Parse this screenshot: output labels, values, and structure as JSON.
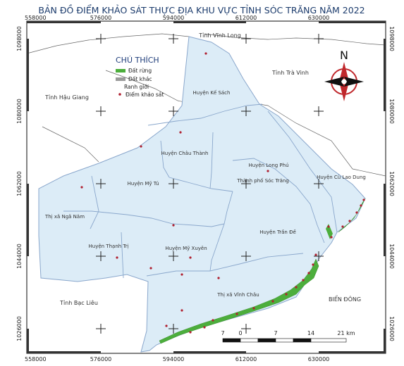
{
  "map": {
    "title": "BẢN ĐỒ ĐIỂM KHẢO SÁT THỰC ĐỊA KHU VỰC TỈNH SÓC TRĂNG NĂM 2022",
    "x_ticks": [
      "558000",
      "576000",
      "594000",
      "612000",
      "630000"
    ],
    "y_ticks": [
      "1098000",
      "1080000",
      "1062000",
      "1044000",
      "1026000"
    ],
    "north_label": "N",
    "legend": {
      "title": "CHÚ THÍCH",
      "items": [
        {
          "label": "Đất rừng",
          "color": "#4cae3c"
        },
        {
          "label": "Đất khác",
          "color": "#9a9a9a"
        },
        {
          "label": "Ranh giới",
          "color": "#7090c0"
        },
        {
          "label": "Điểm khảo sát",
          "color": "#b02030"
        }
      ]
    },
    "scale_bar": {
      "labels": [
        "7",
        "0",
        "7",
        "14",
        "21 km"
      ]
    },
    "neighbors": [
      "Tỉnh Vĩnh Long",
      "Tỉnh Trà Vinh",
      "Tỉnh Hậu Giang",
      "Tỉnh Bạc Liêu",
      "BIỂN ĐÔNG"
    ],
    "districts": [
      "Huyện Kế Sách",
      "Huyện Châu Thành",
      "Huyện Mỹ Tú",
      "Huyện Long Phú",
      "Thành phố Sóc Trăng",
      "Huyện Cù Lao Dung",
      "Thị xã Ngã Năm",
      "Huyện Thạnh Trị",
      "Huyện Mỹ Xuyên",
      "Huyện Trần Đề",
      "Thị xã Vĩnh Châu"
    ],
    "colors": {
      "province_fill": "#dcecf7",
      "boundary": "#8aa7cc",
      "frame": "#333333",
      "title": "#1a3a6b",
      "point": "#b02030",
      "forest": "#4cae3c",
      "compass_red": "#c0282c"
    }
  }
}
